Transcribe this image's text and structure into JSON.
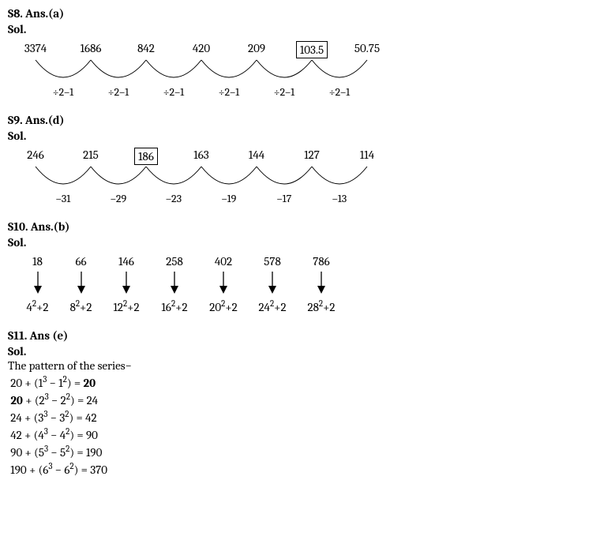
{
  "s8": {
    "header": "S8. Ans.(a)",
    "sol": "Sol.",
    "series": [
      "3374",
      "1686",
      "842",
      "420",
      "209",
      "103.5",
      "50.75"
    ],
    "boxed_index": 5,
    "ops": [
      "÷2–1",
      "÷2–1",
      "÷2–1",
      "÷2–1",
      "÷2–1",
      "÷2–1"
    ],
    "item_widths": [
      70,
      70,
      70,
      70,
      70,
      70,
      70
    ],
    "arc_color": "#000"
  },
  "s9": {
    "header": "S9. Ans.(d)",
    "sol": "Sol.",
    "series": [
      "246",
      "215",
      "186",
      "163",
      "144",
      "127",
      "114"
    ],
    "boxed_index": 2,
    "ops": [
      "–31",
      "–29",
      "–23",
      "–19",
      "–17",
      "–13"
    ],
    "item_widths": [
      70,
      70,
      70,
      70,
      70,
      70,
      70
    ],
    "arc_color": "#000"
  },
  "s10": {
    "header": "S10. Ans.(b)",
    "sol": "Sol.",
    "series": [
      "18",
      "66",
      "146",
      "258",
      "402",
      "578",
      "786"
    ],
    "formulas_base": [
      "4",
      "8",
      "12",
      "16",
      "20",
      "24",
      "28"
    ],
    "formulas_suffix": "+2",
    "item_widths": [
      55,
      55,
      60,
      62,
      62,
      62,
      62
    ]
  },
  "s11": {
    "header": "S11. Ans (e)",
    "sol": "Sol.",
    "intro": "The pattern of the series−",
    "lines": [
      {
        "pre": " 20 + (1",
        "sup1": "3",
        "mid": " − 1",
        "sup2": "2",
        "post": ") = ",
        "result": "20",
        "result_bold": true,
        "pre_bold": false
      },
      {
        "pre": " 20",
        "pre_bold_part": "20",
        "aft_pre": " + (2",
        "sup1": "3",
        "mid": " − 2",
        "sup2": "2",
        "post": ") = 24",
        "result": "",
        "result_bold": false
      },
      {
        "pre": " 24 + (3",
        "sup1": "3",
        "mid": " − 3",
        "sup2": "2",
        "post": ") = 42",
        "result": "",
        "result_bold": false
      },
      {
        "pre": " 42 + (4",
        "sup1": "3",
        "mid": " − 4",
        "sup2": "2",
        "post": ") = 90",
        "result": "",
        "result_bold": false
      },
      {
        "pre": " 90 + (5",
        "sup1": "3",
        "mid": " − 5",
        "sup2": "2",
        "post": ") = 190",
        "result": "",
        "result_bold": false
      },
      {
        "pre": " 190 + (6",
        "sup1": "3",
        "mid": " − 6",
        "sup2": "2",
        "post": ") = 370",
        "result": "",
        "result_bold": false
      }
    ]
  }
}
